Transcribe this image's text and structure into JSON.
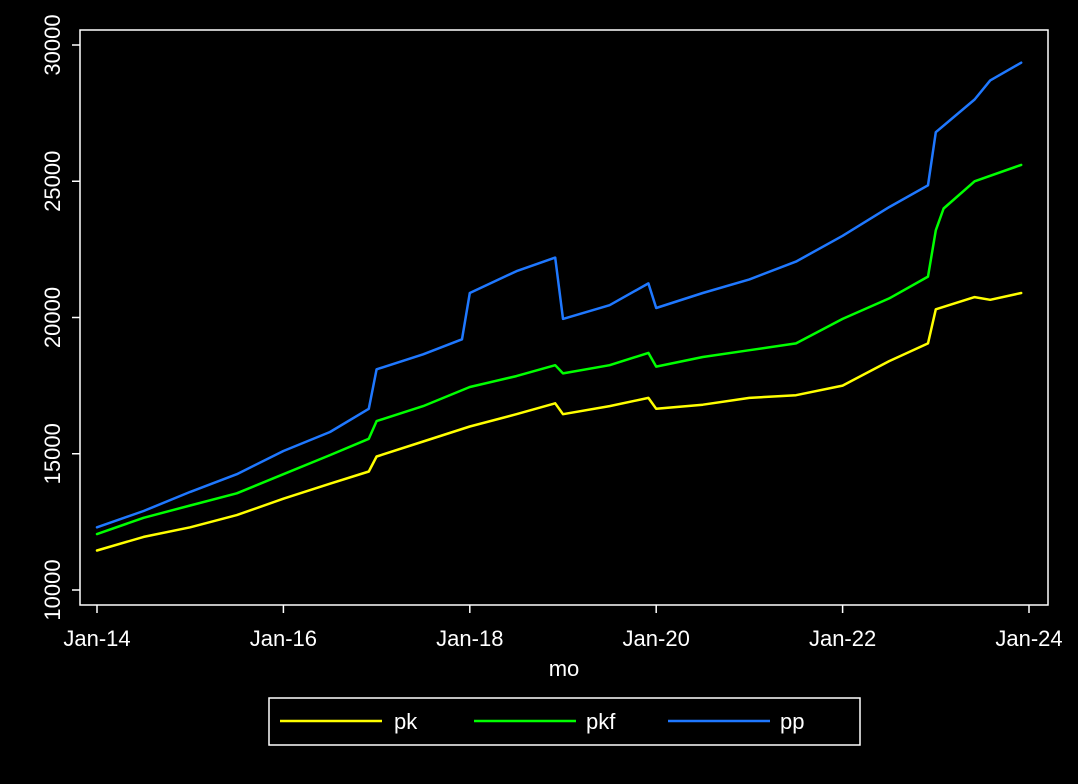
{
  "chart_data": {
    "type": "line",
    "title": "",
    "xlabel": "mo",
    "ylabel": "",
    "ylim": [
      10000,
      30000
    ],
    "xlim": [
      "2014-01",
      "2024-01"
    ],
    "y_ticks": [
      10000,
      15000,
      20000,
      25000,
      30000
    ],
    "y_tick_labels": [
      "10000",
      "15000",
      "20000",
      "25000",
      "30000"
    ],
    "x_ticks": [
      "2014-01",
      "2016-01",
      "2018-01",
      "2020-01",
      "2022-01",
      "2024-01"
    ],
    "x_tick_labels": [
      "Jan-14",
      "Jan-16",
      "Jan-18",
      "Jan-20",
      "Jan-22",
      "Jan-24"
    ],
    "grid": false,
    "legend_position": "bottom",
    "background": "#000000",
    "series": [
      {
        "name": "pk",
        "color": "#ffff00",
        "points": [
          [
            "2014-01",
            11450
          ],
          [
            "2014-07",
            11950
          ],
          [
            "2015-01",
            12300
          ],
          [
            "2015-07",
            12750
          ],
          [
            "2016-01",
            13350
          ],
          [
            "2016-07",
            13900
          ],
          [
            "2016-12",
            14350
          ],
          [
            "2017-01",
            14900
          ],
          [
            "2017-07",
            15450
          ],
          [
            "2018-01",
            16000
          ],
          [
            "2018-07",
            16450
          ],
          [
            "2018-12",
            16850
          ],
          [
            "2019-01",
            16450
          ],
          [
            "2019-07",
            16750
          ],
          [
            "2019-12",
            17050
          ],
          [
            "2020-01",
            16650
          ],
          [
            "2020-07",
            16800
          ],
          [
            "2021-01",
            17050
          ],
          [
            "2021-07",
            17150
          ],
          [
            "2022-01",
            17500
          ],
          [
            "2022-07",
            18400
          ],
          [
            "2022-12",
            19050
          ],
          [
            "2023-01",
            20300
          ],
          [
            "2023-06",
            20750
          ],
          [
            "2023-08",
            20650
          ],
          [
            "2023-12",
            20900
          ]
        ]
      },
      {
        "name": "pkf",
        "color": "#00ff00",
        "points": [
          [
            "2014-01",
            12050
          ],
          [
            "2014-07",
            12650
          ],
          [
            "2015-01",
            13100
          ],
          [
            "2015-07",
            13550
          ],
          [
            "2016-01",
            14250
          ],
          [
            "2016-07",
            14950
          ],
          [
            "2016-12",
            15550
          ],
          [
            "2017-01",
            16200
          ],
          [
            "2017-07",
            16750
          ],
          [
            "2018-01",
            17450
          ],
          [
            "2018-07",
            17850
          ],
          [
            "2018-12",
            18250
          ],
          [
            "2019-01",
            17950
          ],
          [
            "2019-07",
            18250
          ],
          [
            "2019-12",
            18700
          ],
          [
            "2020-01",
            18200
          ],
          [
            "2020-07",
            18550
          ],
          [
            "2021-01",
            18800
          ],
          [
            "2021-07",
            19050
          ],
          [
            "2022-01",
            19950
          ],
          [
            "2022-07",
            20700
          ],
          [
            "2022-12",
            21500
          ],
          [
            "2023-01",
            23200
          ],
          [
            "2023-02",
            24000
          ],
          [
            "2023-06",
            25000
          ],
          [
            "2023-12",
            25600
          ]
        ]
      },
      {
        "name": "pp",
        "color": "#1f78ff",
        "points": [
          [
            "2014-01",
            12300
          ],
          [
            "2014-07",
            12900
          ],
          [
            "2015-01",
            13600
          ],
          [
            "2015-07",
            14250
          ],
          [
            "2016-01",
            15100
          ],
          [
            "2016-07",
            15800
          ],
          [
            "2016-12",
            16650
          ],
          [
            "2017-01",
            18100
          ],
          [
            "2017-07",
            18650
          ],
          [
            "2017-12",
            19200
          ],
          [
            "2018-01",
            20900
          ],
          [
            "2018-07",
            21700
          ],
          [
            "2018-12",
            22200
          ],
          [
            "2019-01",
            19950
          ],
          [
            "2019-07",
            20450
          ],
          [
            "2019-12",
            21250
          ],
          [
            "2020-01",
            20350
          ],
          [
            "2020-07",
            20900
          ],
          [
            "2021-01",
            21400
          ],
          [
            "2021-07",
            22050
          ],
          [
            "2022-01",
            23000
          ],
          [
            "2022-07",
            24050
          ],
          [
            "2022-12",
            24850
          ],
          [
            "2023-01",
            26800
          ],
          [
            "2023-06",
            28000
          ],
          [
            "2023-08",
            28700
          ],
          [
            "2023-12",
            29350
          ]
        ]
      }
    ]
  }
}
